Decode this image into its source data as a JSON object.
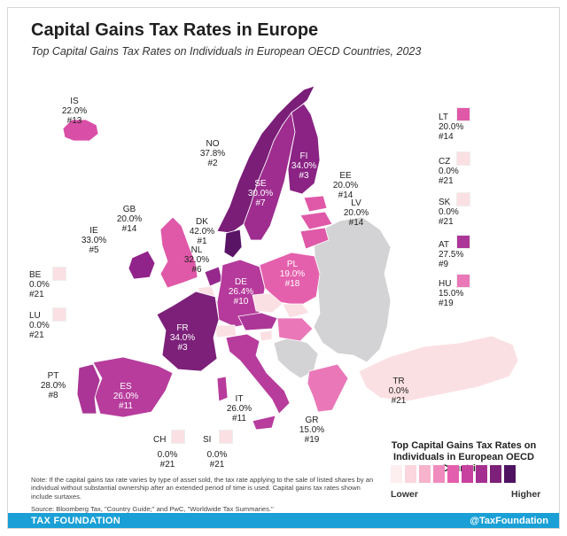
{
  "title": "Capital Gains Tax Rates in Europe",
  "subtitle": "Top Capital Gains Tax Rates on Individuals in European OECD Countries, 2023",
  "countries": {
    "IS": {
      "code": "IS",
      "rate": "22.0%",
      "rank": "#13",
      "color": "#d94ea7"
    },
    "NO": {
      "code": "NO",
      "rate": "37.8%",
      "rank": "#2",
      "color": "#7a1e78"
    },
    "FI": {
      "code": "FI",
      "rate": "34.0%",
      "rank": "#3",
      "color": "#8a2384"
    },
    "SE": {
      "code": "SE",
      "rate": "30.0%",
      "rank": "#7",
      "color": "#9e2d8f"
    },
    "EE": {
      "code": "EE",
      "rate": "20.0%",
      "rank": "#14",
      "color": "#e058a8"
    },
    "LV": {
      "code": "LV",
      "rate": "20.0%",
      "rank": "#14",
      "color": "#e058a8"
    },
    "LT": {
      "code": "LT",
      "rate": "20.0%",
      "rank": "#14",
      "color": "#e058a8"
    },
    "GB": {
      "code": "GB",
      "rate": "20.0%",
      "rank": "#14",
      "color": "#e058a8"
    },
    "IE": {
      "code": "IE",
      "rate": "33.0%",
      "rank": "#5",
      "color": "#91248a"
    },
    "DK": {
      "code": "DK",
      "rate": "42.0%",
      "rank": "#1",
      "color": "#5a1466"
    },
    "NL": {
      "code": "NL",
      "rate": "32.0%",
      "rank": "#6",
      "color": "#96288c"
    },
    "DE": {
      "code": "DE",
      "rate": "26.4%",
      "rank": "#10",
      "color": "#b53a9b"
    },
    "PL": {
      "code": "PL",
      "rate": "19.0%",
      "rank": "#18",
      "color": "#e560ac"
    },
    "FR": {
      "code": "FR",
      "rate": "34.0%",
      "rank": "#3",
      "color": "#7c2079"
    },
    "ES": {
      "code": "ES",
      "rate": "26.0%",
      "rank": "#11",
      "color": "#b73c9c"
    },
    "PT": {
      "code": "PT",
      "rate": "28.0%",
      "rank": "#8",
      "color": "#aa3596"
    },
    "IT": {
      "code": "IT",
      "rate": "26.0%",
      "rank": "#11",
      "color": "#b73c9c"
    },
    "GR": {
      "code": "GR",
      "rate": "15.0%",
      "rank": "#19",
      "color": "#ea78b8"
    },
    "TR": {
      "code": "TR",
      "rate": "0.0%",
      "rank": "#21",
      "color": "#fbe0e3"
    },
    "BE": {
      "code": "BE",
      "rate": "0.0%",
      "rank": "#21",
      "color": "#fbe0e3"
    },
    "LU": {
      "code": "LU",
      "rate": "0.0%",
      "rank": "#21",
      "color": "#fbe0e3"
    },
    "CZ": {
      "code": "CZ",
      "rate": "0.0%",
      "rank": "#21",
      "color": "#fbe0e3"
    },
    "SK": {
      "code": "SK",
      "rate": "0.0%",
      "rank": "#21",
      "color": "#fbe0e3"
    },
    "AT": {
      "code": "AT",
      "rate": "27.5%",
      "rank": "#9",
      "color": "#ac3698"
    },
    "HU": {
      "code": "HU",
      "rate": "15.0%",
      "rank": "#19",
      "color": "#ea78b8"
    },
    "CH": {
      "code": "CH",
      "rate": "0.0%",
      "rank": "#21",
      "color": "#fbe0e3"
    },
    "SI": {
      "code": "SI",
      "rate": "0.0%",
      "rank": "#21",
      "color": "#fbe0e3"
    }
  },
  "non_oecd_color": "#d3d3d5",
  "legend": {
    "title": "Top Capital Gains Tax Rates on Individuals in European OECD Countries",
    "low": "Lower",
    "high": "Higher",
    "colors": [
      "#fdeef0",
      "#fbd6de",
      "#f6b3cb",
      "#ef8cbd",
      "#e35fad",
      "#c8419f",
      "#a42f91",
      "#7c2079",
      "#4f1260"
    ]
  },
  "note": "Note: If the capital gains tax rate varies by type of asset sold, the tax rate applying to the sale of listed shares by an individual without substantial ownership after an extended period of time is used. Capital gains tax rates shown include surtaxes.",
  "source": "Source: Bloomberg Tax, \"Country Guide;\" and PwC, \"Worldwide Tax Summaries.\"",
  "footer": {
    "left": "TAX FOUNDATION",
    "right": "@TaxFoundation"
  }
}
